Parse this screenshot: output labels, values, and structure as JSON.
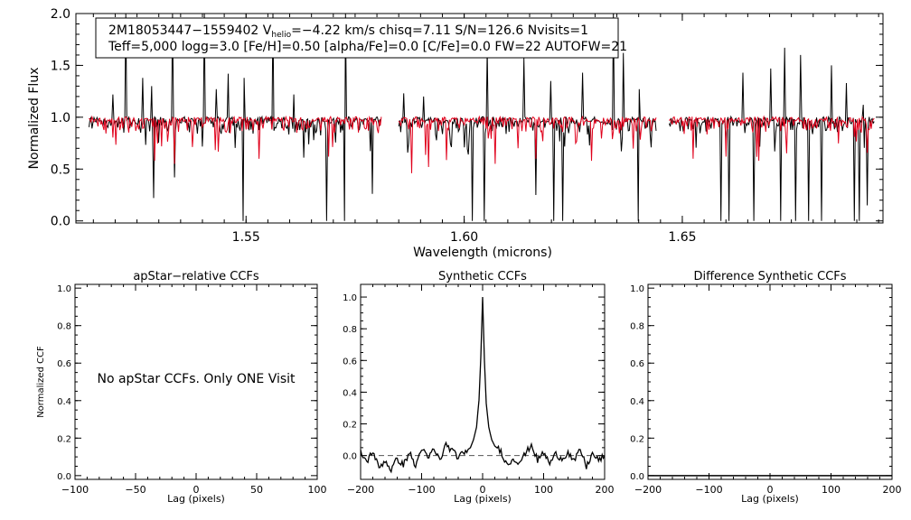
{
  "chart_data": [
    {
      "id": "spectrum",
      "type": "line",
      "title": "",
      "xlabel": "Wavelength (microns)",
      "ylabel": "Normalized Flux",
      "xlim": [
        1.511,
        1.696
      ],
      "ylim": [
        -0.02,
        2.0
      ],
      "xticks": [
        {
          "value": 1.55,
          "label": "1.55"
        },
        {
          "value": 1.6,
          "label": "1.60"
        },
        {
          "value": 1.65,
          "label": "1.65"
        }
      ],
      "yticks": [
        {
          "value": 0.0,
          "label": "0.0"
        },
        {
          "value": 0.5,
          "label": "0.5"
        },
        {
          "value": 1.0,
          "label": "1.0"
        },
        {
          "value": 1.5,
          "label": "1.5"
        },
        {
          "value": 2.0,
          "label": "2.0"
        }
      ],
      "legend": {
        "line1_prefix": "2M18053447−1559402  V",
        "line1_sub": "helio",
        "line1_suffix": "=−4.22 km/s  chisq=7.11  S/N=126.6  Nvisits=1",
        "line2": "Teff=5,000 logg=3.0 [Fe/H]=0.50 [alpha/Fe]=0.0 [C/Fe]=0.0 FW=22 AUTOFW=21"
      },
      "chip_ranges": [
        [
          1.514,
          1.581
        ],
        [
          1.585,
          1.644
        ],
        [
          1.647,
          1.694
        ]
      ],
      "continuum": 0.97,
      "series": [
        {
          "name": "observed",
          "color": "#000000"
        },
        {
          "name": "synthetic",
          "color": "#e0001b"
        }
      ],
      "observed_spikes": [
        [
          1.5194,
          1.22
        ],
        [
          1.5225,
          2.0
        ],
        [
          1.5262,
          1.38
        ],
        [
          1.5283,
          1.3
        ],
        [
          1.5332,
          2.0
        ],
        [
          1.5405,
          2.0
        ],
        [
          1.5432,
          1.27
        ],
        [
          1.5459,
          1.42
        ],
        [
          1.5496,
          1.38
        ],
        [
          1.5562,
          2.0
        ],
        [
          1.5609,
          1.22
        ],
        [
          1.5727,
          2.0
        ],
        [
          1.5862,
          1.23
        ],
        [
          1.5908,
          1.2
        ],
        [
          1.6018,
          2.0
        ],
        [
          1.6052,
          1.67
        ],
        [
          1.6137,
          1.57
        ],
        [
          1.6198,
          1.35
        ],
        [
          1.6272,
          1.43
        ],
        [
          1.6341,
          2.0
        ],
        [
          1.6365,
          1.62
        ],
        [
          1.6402,
          1.27
        ],
        [
          1.6638,
          1.43
        ],
        [
          1.6702,
          1.47
        ],
        [
          1.6735,
          1.67
        ],
        [
          1.6772,
          1.6
        ],
        [
          1.6842,
          1.5
        ],
        [
          1.6875,
          1.33
        ],
        [
          1.6914,
          1.12
        ]
      ],
      "observed_dips": [
        [
          1.5288,
          0.22
        ],
        [
          1.5335,
          0.42
        ],
        [
          1.5493,
          0.0
        ],
        [
          1.5685,
          0.0
        ],
        [
          1.5725,
          0.0
        ],
        [
          1.579,
          0.26
        ],
        [
          1.6018,
          0.0
        ],
        [
          1.6045,
          0.0
        ],
        [
          1.6165,
          0.25
        ],
        [
          1.6205,
          0.0
        ],
        [
          1.6225,
          0.0
        ],
        [
          1.6398,
          0.0
        ],
        [
          1.6442,
          0.0
        ],
        [
          1.6588,
          0.0
        ],
        [
          1.6608,
          0.0
        ],
        [
          1.6665,
          0.0
        ],
        [
          1.6725,
          0.0
        ],
        [
          1.676,
          0.0
        ],
        [
          1.679,
          0.0
        ],
        [
          1.682,
          0.0
        ],
        [
          1.6895,
          0.0
        ],
        [
          1.6905,
          0.0
        ],
        [
          1.6925,
          0.15
        ]
      ],
      "synthetic_dips": [
        [
          1.529,
          0.58
        ],
        [
          1.5335,
          0.55
        ],
        [
          1.553,
          0.6
        ],
        [
          1.569,
          0.62
        ],
        [
          1.588,
          0.46
        ],
        [
          1.5918,
          0.52
        ],
        [
          1.6072,
          0.55
        ],
        [
          1.6165,
          0.6
        ],
        [
          1.6292,
          0.58
        ],
        [
          1.6525,
          0.6
        ],
        [
          1.66,
          0.62
        ],
        [
          1.6675,
          0.58
        ]
      ]
    },
    {
      "id": "apstar",
      "type": "line",
      "title": "apStar−relative CCFs",
      "xlabel": "Lag (pixels)",
      "ylabel": "Normalized CCF",
      "xlim": [
        -100,
        100
      ],
      "ylim": [
        -0.02,
        1.02
      ],
      "xticks": [
        -100,
        -50,
        0,
        50,
        100
      ],
      "xticklabels": [
        "−100",
        "−50",
        "0",
        "50",
        "100"
      ],
      "yticks": [
        0.0,
        0.2,
        0.4,
        0.6,
        0.8,
        1.0
      ],
      "yticklabels": [
        "0.0",
        "0.2",
        "0.4",
        "0.6",
        "0.8",
        "1.0"
      ],
      "annotation": "No apStar CCFs.  Only ONE Visit"
    },
    {
      "id": "synthetic",
      "type": "line",
      "title": "Synthetic CCFs",
      "xlabel": "Lag (pixels)",
      "ylabel": "",
      "xlim": [
        -200,
        200
      ],
      "ylim": [
        -0.15,
        1.08
      ],
      "xticks": [
        -200,
        -100,
        0,
        100,
        200
      ],
      "xticklabels": [
        "−200",
        "−100",
        "0",
        "100",
        "200"
      ],
      "yticks": [
        0.0,
        0.2,
        0.4,
        0.6,
        0.8,
        1.0
      ],
      "yticklabels": [
        "0.0",
        "0.2",
        "0.4",
        "0.6",
        "0.8",
        "1.0"
      ],
      "baseline": 0.0,
      "x": [
        -200,
        -190,
        -180,
        -170,
        -160,
        -150,
        -140,
        -130,
        -120,
        -110,
        -100,
        -90,
        -80,
        -70,
        -60,
        -50,
        -40,
        -30,
        -20,
        -15,
        -10,
        -6,
        -3,
        0,
        3,
        6,
        10,
        15,
        20,
        30,
        40,
        50,
        60,
        70,
        80,
        90,
        100,
        110,
        120,
        130,
        140,
        150,
        160,
        170,
        180,
        190,
        200
      ],
      "y": [
        0.02,
        -0.04,
        0.03,
        -0.08,
        -0.03,
        -0.09,
        -0.02,
        -0.06,
        0.02,
        -0.07,
        0.05,
        -0.02,
        0.04,
        -0.03,
        0.07,
        0.03,
        -0.01,
        0.02,
        0.05,
        0.1,
        0.18,
        0.35,
        0.62,
        1.0,
        0.6,
        0.33,
        0.18,
        0.1,
        0.06,
        0.03,
        -0.06,
        -0.02,
        -0.04,
        0.01,
        0.07,
        -0.03,
        0.02,
        -0.05,
        0.01,
        -0.02,
        0.02,
        -0.04,
        0.04,
        -0.07,
        0.01,
        -0.03,
        0.0
      ]
    },
    {
      "id": "difference",
      "type": "line",
      "title": "Difference Synthetic CCFs",
      "xlabel": "Lag (pixels)",
      "ylabel": "",
      "xlim": [
        -200,
        200
      ],
      "ylim": [
        -0.02,
        1.02
      ],
      "xticks": [
        -200,
        -100,
        0,
        100,
        200
      ],
      "xticklabels": [
        "−200",
        "−100",
        "0",
        "100",
        "200"
      ],
      "yticks": [
        0.0,
        0.2,
        0.4,
        0.6,
        0.8,
        1.0
      ],
      "yticklabels": [
        "0.0",
        "0.2",
        "0.4",
        "0.6",
        "0.8",
        "1.0"
      ],
      "y_flat": 0.0
    }
  ]
}
